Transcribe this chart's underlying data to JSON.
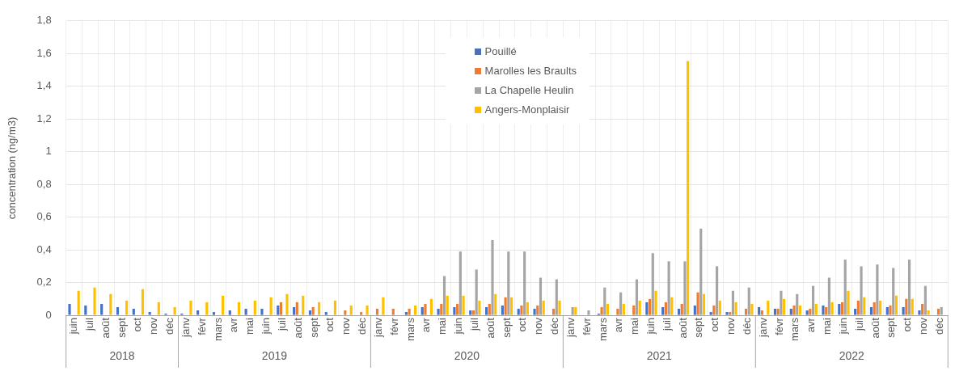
{
  "chart_data": {
    "type": "bar",
    "ylabel": "concentration (ng/m3)",
    "categories": [
      "juin",
      "juil",
      "août",
      "sept",
      "oct",
      "nov",
      "déc",
      "janv",
      "févr",
      "mars",
      "avr",
      "mai",
      "juin",
      "juil",
      "août",
      "sept",
      "oct",
      "nov",
      "déc",
      "janv",
      "févr",
      "mars",
      "avr",
      "mai",
      "juin",
      "juil",
      "août",
      "sept",
      "oct",
      "nov",
      "déc",
      "janv",
      "févr",
      "mars",
      "avr",
      "mai",
      "juin",
      "juil",
      "août",
      "sept",
      "oct",
      "nov",
      "déc",
      "janv",
      "févr",
      "mars",
      "avr",
      "mai",
      "juin",
      "juil",
      "août",
      "sept",
      "oct",
      "nov",
      "déc"
    ],
    "series": [
      {
        "name": "Pouillé",
        "color": "#4472c4",
        "values": [
          0.07,
          0.06,
          0.07,
          0.05,
          0.04,
          0.02,
          0.01,
          0.01,
          0.03,
          0.02,
          0.03,
          0.04,
          0.04,
          0.06,
          0.05,
          0.03,
          0.02,
          null,
          null,
          null,
          null,
          0.02,
          0.05,
          0.04,
          0.05,
          0.03,
          0.05,
          0.06,
          0.04,
          0.04,
          null,
          null,
          null,
          0.01,
          null,
          null,
          0.08,
          0.05,
          0.04,
          0.06,
          0.02,
          0.02,
          null,
          0.05,
          0.04,
          0.04,
          0.03,
          0.06,
          0.07,
          0.04,
          0.05,
          0.05,
          0.05,
          0.03,
          null
        ]
      },
      {
        "name": "Marolles les Braults",
        "color": "#ed7d31",
        "values": [
          null,
          null,
          null,
          null,
          null,
          null,
          null,
          null,
          null,
          null,
          null,
          null,
          null,
          0.08,
          0.08,
          0.05,
          null,
          0.03,
          0.02,
          0.04,
          0.04,
          0.04,
          0.07,
          0.07,
          0.07,
          0.03,
          0.07,
          0.11,
          0.06,
          0.06,
          0.04,
          null,
          null,
          0.05,
          0.04,
          0.06,
          0.1,
          0.08,
          0.07,
          0.14,
          0.06,
          0.02,
          0.04,
          0.03,
          0.04,
          0.06,
          0.04,
          0.05,
          0.08,
          0.09,
          0.08,
          0.06,
          0.1,
          0.07,
          0.04
        ]
      },
      {
        "name": "La Chapelle Heulin",
        "color": "#a5a5a5",
        "values": [
          null,
          null,
          null,
          null,
          null,
          null,
          null,
          null,
          null,
          null,
          null,
          null,
          null,
          null,
          null,
          null,
          null,
          null,
          null,
          null,
          null,
          null,
          null,
          0.24,
          0.39,
          0.28,
          0.46,
          0.39,
          0.39,
          0.23,
          0.22,
          0.05,
          0.03,
          0.17,
          0.14,
          0.22,
          0.38,
          0.33,
          0.33,
          0.53,
          0.3,
          0.15,
          0.17,
          null,
          0.15,
          0.13,
          0.18,
          0.23,
          0.34,
          0.3,
          0.31,
          0.29,
          0.34,
          0.18,
          0.05
        ]
      },
      {
        "name": "Angers-Monplaisir",
        "color": "#ffc000",
        "values": [
          0.15,
          0.17,
          0.13,
          0.09,
          0.16,
          0.08,
          0.05,
          0.09,
          0.08,
          0.12,
          0.08,
          0.09,
          0.11,
          0.13,
          0.12,
          0.08,
          0.09,
          0.06,
          0.06,
          0.11,
          null,
          0.06,
          0.1,
          0.12,
          0.12,
          0.09,
          0.13,
          0.11,
          0.08,
          0.09,
          0.09,
          0.05,
          null,
          0.07,
          0.07,
          0.09,
          0.15,
          0.11,
          1.555,
          0.13,
          0.09,
          0.08,
          0.07,
          0.09,
          0.1,
          0.06,
          0.07,
          0.08,
          0.15,
          0.11,
          0.09,
          0.12,
          0.1,
          0.03,
          null
        ]
      }
    ],
    "ylim": [
      0,
      1.8
    ],
    "yticks": [
      0,
      {
        "value": 0.2,
        "label": "0,2"
      },
      {
        "value": 0.4,
        "label": "0,4"
      },
      {
        "value": 0.6,
        "label": "0,6"
      },
      {
        "value": 0.8,
        "label": "0,8"
      },
      1,
      {
        "value": 1.2,
        "label": "1,2"
      },
      {
        "value": 1.4,
        "label": "1,4"
      },
      {
        "value": 1.6,
        "label": "1,6"
      },
      {
        "value": 1.8,
        "label": "1,8"
      }
    ],
    "grid": true,
    "legend": "top",
    "annotations": [
      "2018",
      "2019",
      "2020",
      "2021",
      "2022"
    ]
  }
}
